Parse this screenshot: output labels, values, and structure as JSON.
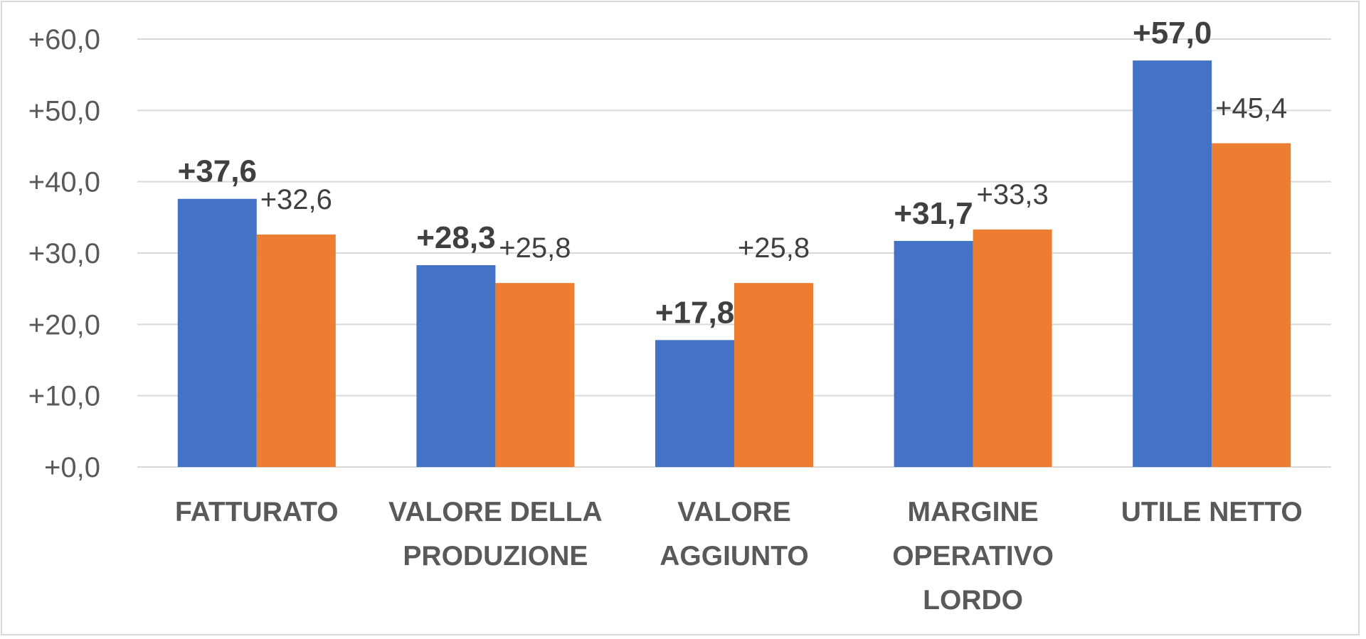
{
  "chart_data": {
    "type": "bar",
    "title": "",
    "xlabel": "",
    "ylabel": "",
    "categories": [
      [
        "FATTURATO"
      ],
      [
        "VALORE DELLA",
        "PRODUZIONE"
      ],
      [
        "VALORE",
        "AGGIUNTO"
      ],
      [
        "MARGINE",
        "OPERATIVO",
        "LORDO"
      ],
      [
        "UTILE NETTO"
      ]
    ],
    "series": [
      {
        "values": [
          37.6,
          28.3,
          17.8,
          31.7,
          57.0
        ],
        "labels": [
          "+37,6",
          "+28,3",
          "+17,8",
          "+31,7",
          "+57,0"
        ],
        "color": "#4472c4",
        "label_style": "bold"
      },
      {
        "values": [
          32.6,
          25.8,
          25.8,
          33.3,
          45.4
        ],
        "labels": [
          "+32,6",
          "+25,8",
          "+25,8",
          "+33,3",
          "+45,4"
        ],
        "color": "#ed7d31",
        "label_style": "normal"
      }
    ],
    "ylim": [
      0,
      60
    ],
    "yticks": [
      0,
      10,
      20,
      30,
      40,
      50,
      60
    ],
    "ytick_labels": [
      "+0,0",
      "+10,0",
      "+20,0",
      "+30,0",
      "+40,0",
      "+50,0",
      "+60,0"
    ],
    "grid": true,
    "legend": "none"
  }
}
